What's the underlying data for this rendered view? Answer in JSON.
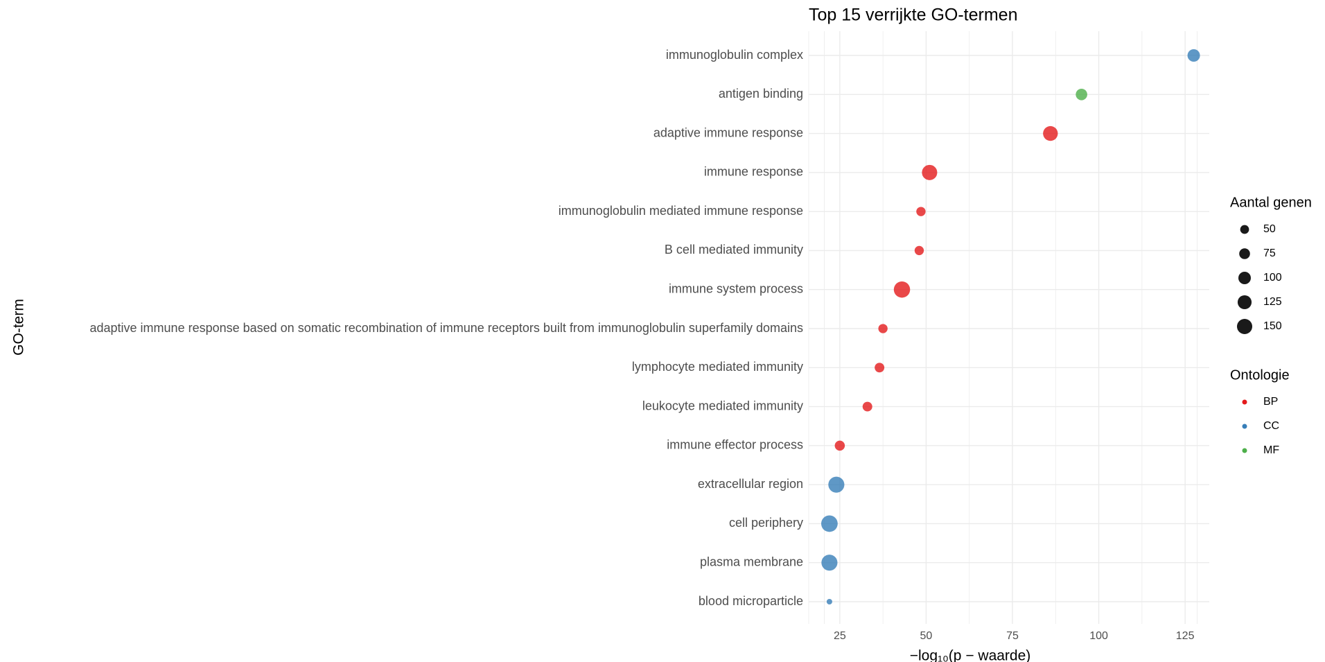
{
  "chart_data": {
    "type": "scatter",
    "title": "Top 15 verrijkte GO-termen",
    "xlabel": "−log₁₀(p − waarde)",
    "ylabel": "GO-term",
    "xlim": [
      16,
      132
    ],
    "xticks": [
      25,
      50,
      75,
      100,
      125
    ],
    "grid": true,
    "legend_position": "right",
    "points": [
      {
        "term": "immunoglobulin complex",
        "x": 127.5,
        "genes": 100,
        "ontology": "CC"
      },
      {
        "term": "antigen binding",
        "x": 95,
        "genes": 85,
        "ontology": "MF"
      },
      {
        "term": "adaptive immune response",
        "x": 86,
        "genes": 140,
        "ontology": "BP"
      },
      {
        "term": "immune response",
        "x": 51,
        "genes": 150,
        "ontology": "BP"
      },
      {
        "term": "immunoglobulin mediated immune response",
        "x": 48.5,
        "genes": 55,
        "ontology": "BP"
      },
      {
        "term": "B cell mediated immunity",
        "x": 48,
        "genes": 55,
        "ontology": "BP"
      },
      {
        "term": "immune system process",
        "x": 43,
        "genes": 170,
        "ontology": "BP"
      },
      {
        "term": "adaptive immune response based on somatic recombination of immune receptors built from immunoglobulin superfamily domains",
        "x": 37.5,
        "genes": 55,
        "ontology": "BP"
      },
      {
        "term": "lymphocyte mediated immunity",
        "x": 36.5,
        "genes": 60,
        "ontology": "BP"
      },
      {
        "term": "leukocyte mediated immunity",
        "x": 33,
        "genes": 60,
        "ontology": "BP"
      },
      {
        "term": "immune effector process",
        "x": 25,
        "genes": 65,
        "ontology": "BP"
      },
      {
        "term": "extracellular region",
        "x": 24,
        "genes": 165,
        "ontology": "CC"
      },
      {
        "term": "cell periphery",
        "x": 22,
        "genes": 175,
        "ontology": "CC"
      },
      {
        "term": "plasma membrane",
        "x": 22,
        "genes": 165,
        "ontology": "CC"
      },
      {
        "term": "blood microparticle",
        "x": 22,
        "genes": 20,
        "ontology": "CC"
      }
    ],
    "size_legend": {
      "title": "Aantal genen",
      "values": [
        50,
        75,
        100,
        125,
        150
      ]
    },
    "color_legend": {
      "title": "Ontologie",
      "entries": [
        {
          "label": "BP",
          "color": "#E41A1C"
        },
        {
          "label": "CC",
          "color": "#377EB8"
        },
        {
          "label": "MF",
          "color": "#4DAF4A"
        }
      ]
    },
    "point_opacity": 0.8,
    "legend_swatch_color": "#1a1a1a"
  }
}
